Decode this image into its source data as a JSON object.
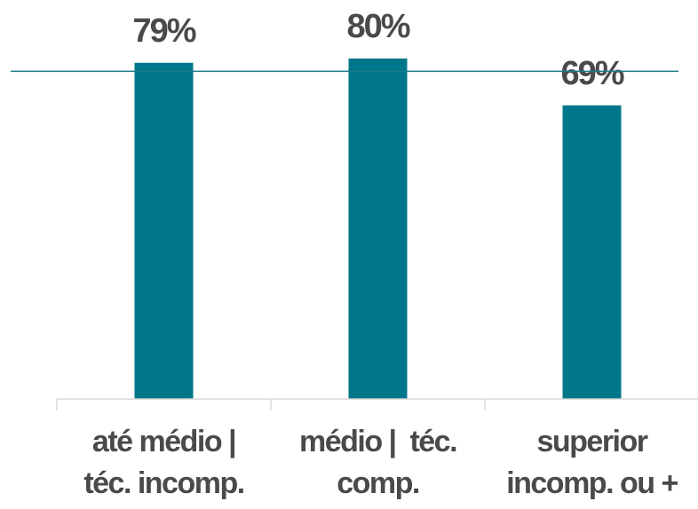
{
  "chart_data": {
    "type": "bar",
    "categories": [
      [
        "até médio |",
        "téc. incomp."
      ],
      [
        "médio |  téc.",
        "comp."
      ],
      [
        "superior",
        "incomp. ou +"
      ]
    ],
    "values": [
      79,
      80,
      69
    ],
    "value_labels": [
      "79%",
      "80%",
      "69%"
    ],
    "reference_line": 77,
    "ylim": [
      0,
      100
    ],
    "colors": {
      "bar": "#00768a",
      "reference_line": "#1a7a8a",
      "axis": "#d9d9d9",
      "text": "#4a4a4a"
    }
  }
}
